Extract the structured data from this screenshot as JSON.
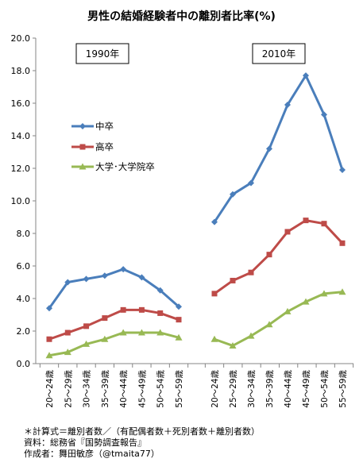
{
  "chart_data": {
    "type": "line",
    "title": "男性の結婚経験者中の離別者比率(%)",
    "ylim": [
      0,
      20
    ],
    "yticks": [
      "0.0",
      "2.0",
      "4.0",
      "6.0",
      "8.0",
      "10.0",
      "12.0",
      "14.0",
      "16.0",
      "18.0",
      "20.0"
    ],
    "grid": false,
    "legend_position": "left-middle",
    "panels": [
      {
        "label": "1990年",
        "categories": [
          "20～24歳",
          "25～29歳",
          "30～34歳",
          "35～39歳",
          "40～44歳",
          "45～49歳",
          "50～54歳",
          "55～59歳"
        ]
      },
      {
        "label": "2010年",
        "categories": [
          "20～24歳",
          "25～29歳",
          "30～34歳",
          "35～39歳",
          "40～44歳",
          "45～49歳",
          "50～54歳",
          "55～59歳"
        ]
      }
    ],
    "series": [
      {
        "name": "中卒",
        "color": "#4a7ebb",
        "marker": "diamond",
        "values_1990": [
          3.4,
          5.0,
          5.2,
          5.4,
          5.8,
          5.3,
          4.5,
          3.5
        ],
        "values_2010": [
          8.7,
          10.4,
          11.1,
          13.2,
          15.9,
          17.7,
          15.3,
          11.9
        ]
      },
      {
        "name": "高卒",
        "color": "#be4b48",
        "marker": "square",
        "values_1990": [
          1.5,
          1.9,
          2.3,
          2.8,
          3.3,
          3.3,
          3.1,
          2.7
        ],
        "values_2010": [
          4.3,
          5.1,
          5.6,
          6.7,
          8.1,
          8.8,
          8.6,
          7.4
        ]
      },
      {
        "name": "大学･大学院卒",
        "color": "#98b954",
        "marker": "triangle",
        "values_1990": [
          0.5,
          0.7,
          1.2,
          1.5,
          1.9,
          1.9,
          1.9,
          1.6
        ],
        "values_2010": [
          1.5,
          1.1,
          1.7,
          2.4,
          3.2,
          3.8,
          4.3,
          4.4
        ]
      }
    ]
  },
  "notes": {
    "line1": "＊計算式＝離別者数／（有配偶者数＋死別者数＋離別者数）",
    "line2": "資料：総務省『国勢調査報告』",
    "line3": "作成者：舞田敏彦（@tmaita77）"
  }
}
